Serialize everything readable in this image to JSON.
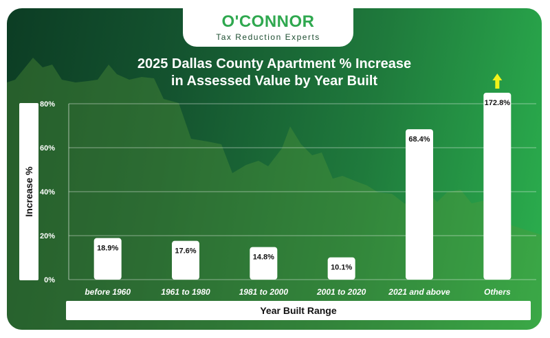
{
  "brand": {
    "name": "O'CONNOR",
    "tagline": "Tax Reduction Experts"
  },
  "colors": {
    "bar_fill": "#ffffff",
    "arrow": "#f2f21a",
    "gridline": "#ffffff",
    "logo_green": "#2fa84f"
  },
  "chart_data": {
    "type": "bar",
    "title_lines": [
      "2025 Dallas County Apartment % Increase",
      "in Assessed Value by Year Built"
    ],
    "xlabel": "Year Built Range",
    "ylabel": "Increase %",
    "categories": [
      "before 1960",
      "1961 to 1980",
      "1981 to 2000",
      "2001 to 2020",
      "2021 and above",
      "Others"
    ],
    "values": [
      18.9,
      17.6,
      14.8,
      10.1,
      68.4,
      172.8
    ],
    "data_labels": [
      "18.9%",
      "17.6%",
      "14.8%",
      "10.1%",
      "68.4%",
      "172.8%"
    ],
    "yticks": [
      0,
      20,
      40,
      60,
      80
    ],
    "ytick_labels": [
      "0%",
      "20%",
      "40%",
      "60%",
      "80%"
    ],
    "ylim": [
      0,
      80
    ],
    "grid": true,
    "legend": "none",
    "overflow_indicator": {
      "category": "Others",
      "icon": "up-arrow-icon"
    }
  }
}
